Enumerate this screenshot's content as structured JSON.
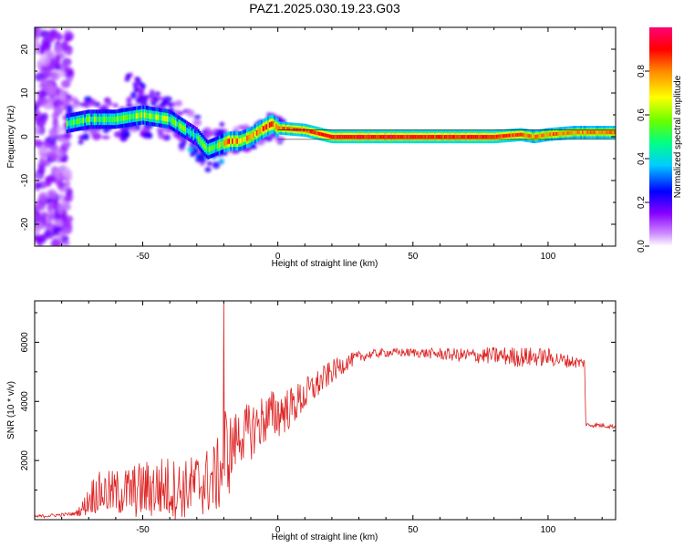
{
  "title": "PAZ1.2025.030.19.23.G03",
  "chart_data": [
    {
      "type": "heatmap",
      "xlabel": "Height of straight line (km)",
      "ylabel": "Frequency (Hz)",
      "xlim": [
        -90,
        125
      ],
      "ylim": [
        -25,
        25
      ],
      "x_ticks": [
        -50,
        0,
        50,
        100
      ],
      "y_ticks": [
        -20,
        -10,
        0,
        10,
        20
      ],
      "colorbar": {
        "label": "Normalized spectral amplitude",
        "range": [
          0,
          1
        ],
        "ticks": [
          "0.0",
          "0.2",
          "0.4",
          "0.6",
          "0.8"
        ],
        "colors": [
          "#ffffff",
          "#cc88ff",
          "#8800ff",
          "#0000ff",
          "#00ccff",
          "#00ff88",
          "#66ff00",
          "#ffff00",
          "#ff8800",
          "#ff0000",
          "#ff0077"
        ]
      },
      "ridge": {
        "x": [
          -78,
          -70,
          -60,
          -50,
          -40,
          -35,
          -30,
          -26,
          -22,
          -18,
          -14,
          -10,
          -5,
          -2,
          0,
          10,
          20,
          40,
          60,
          80,
          90,
          95,
          100,
          110,
          125
        ],
        "frequency": [
          3,
          4,
          4,
          5,
          4,
          2,
          0,
          -3,
          -2,
          -1,
          -1,
          0,
          2,
          3,
          2,
          1.5,
          0,
          0,
          0,
          0,
          0.5,
          0,
          0.5,
          1,
          1
        ],
        "amplitude": [
          0.5,
          0.5,
          0.55,
          0.6,
          0.55,
          0.5,
          0.45,
          0.5,
          0.6,
          0.8,
          0.75,
          0.7,
          0.8,
          0.85,
          0.8,
          0.85,
          0.9,
          0.92,
          0.9,
          0.88,
          0.85,
          0.8,
          0.82,
          0.8,
          0.8
        ]
      },
      "noise_band": {
        "x_range": [
          -90,
          -77
        ],
        "y_range": [
          -25,
          25
        ]
      }
    },
    {
      "type": "line",
      "xlabel": "Height of straight line (km)",
      "ylabel": "SNR (10 * v/v)",
      "xlim": [
        -90,
        125
      ],
      "ylim": [
        0,
        7400
      ],
      "x_ticks": [
        -50,
        0,
        50,
        100
      ],
      "y_ticks": [
        2000,
        4000,
        6000
      ],
      "color": "#dd2222",
      "envelope": {
        "x": [
          -90,
          -75,
          -72,
          -68,
          -60,
          -50,
          -42,
          -35,
          -30,
          -25,
          -22,
          -20,
          -19.5,
          -18,
          -15,
          -10,
          -5,
          0,
          5,
          10,
          15,
          20,
          25,
          30,
          35,
          40,
          50,
          60,
          70,
          80,
          90,
          100,
          105,
          112,
          113.5,
          114,
          118,
          125
        ],
        "mean": [
          100,
          200,
          400,
          900,
          900,
          1000,
          1100,
          1000,
          1200,
          1300,
          1500,
          2000,
          2500,
          2200,
          2800,
          3000,
          3400,
          3600,
          3800,
          4200,
          4600,
          5000,
          5300,
          5500,
          5600,
          5650,
          5650,
          5600,
          5550,
          5550,
          5500,
          5500,
          5400,
          5300,
          5300,
          3200,
          3200,
          3150
        ],
        "jitter": [
          60,
          60,
          300,
          700,
          800,
          1000,
          1100,
          1000,
          1100,
          1200,
          1300,
          1500,
          1500,
          1400,
          900,
          1000,
          900,
          900,
          700,
          600,
          500,
          400,
          300,
          200,
          150,
          150,
          150,
          200,
          250,
          300,
          350,
          300,
          250,
          200,
          150,
          80,
          80,
          80
        ]
      },
      "spike": {
        "x": -20,
        "y": 7400
      }
    }
  ]
}
